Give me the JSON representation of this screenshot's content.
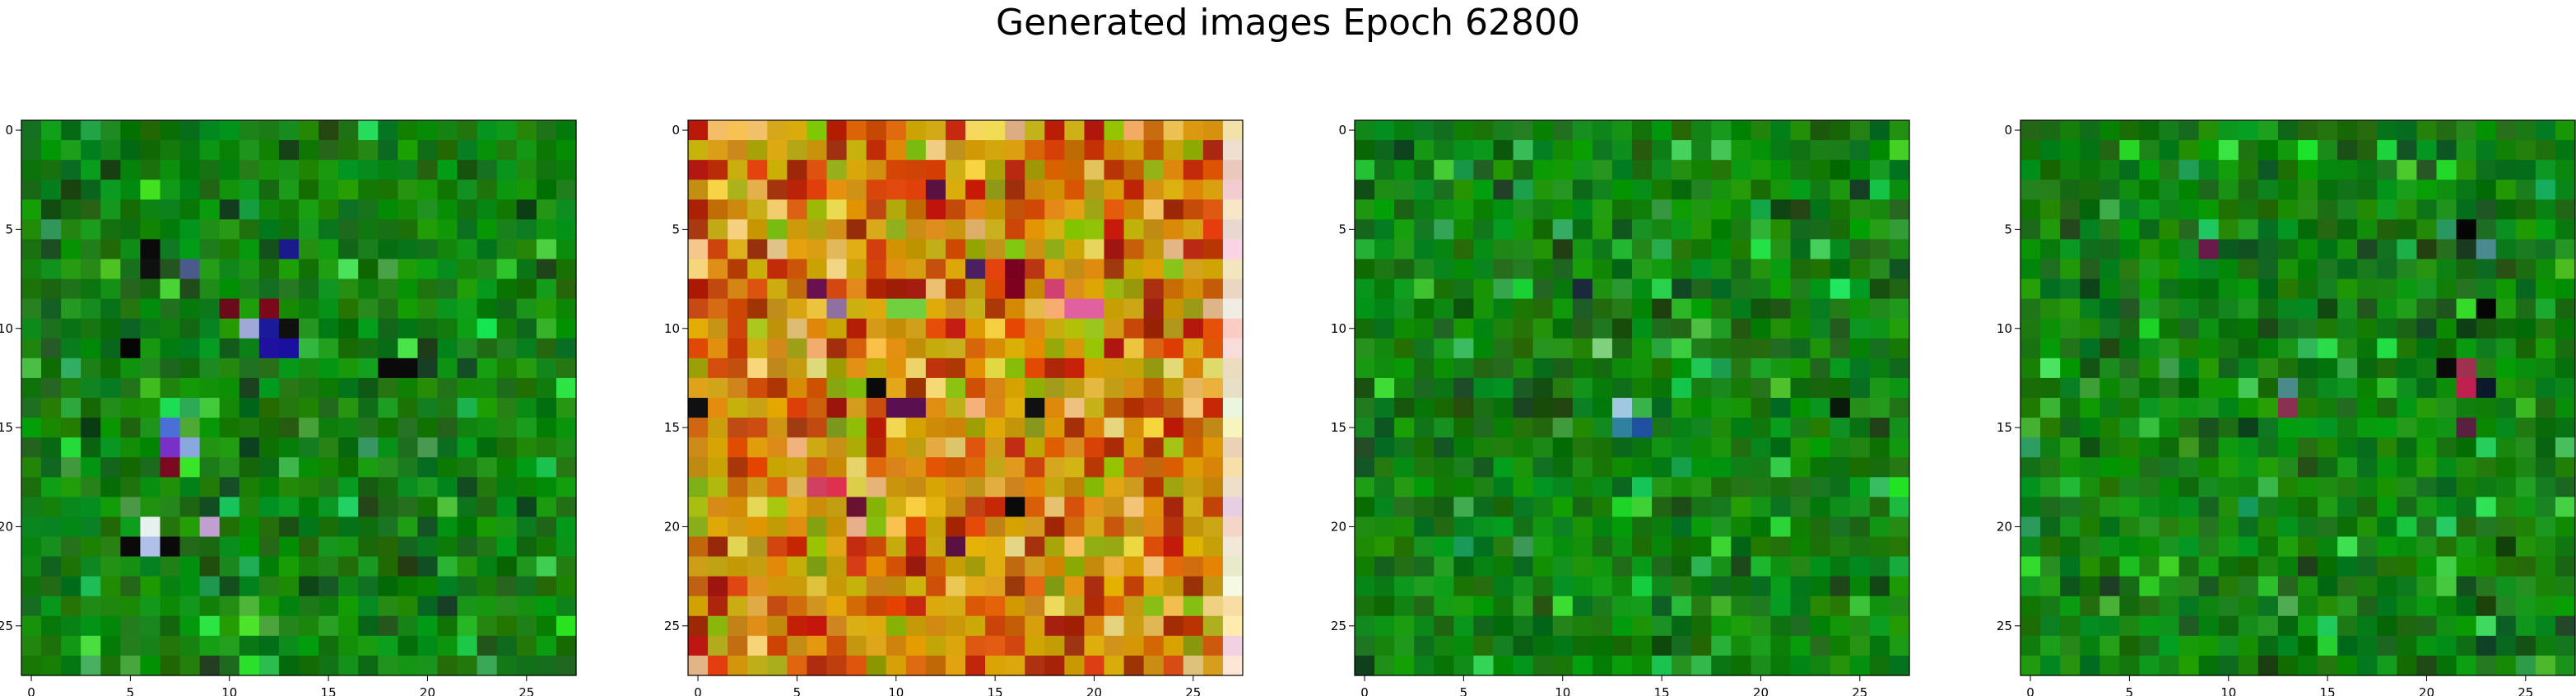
{
  "figure": {
    "title": "Generated images Epoch 62800"
  },
  "chart_data": [
    {
      "type": "heatmap",
      "palette": "green",
      "grid_size": 28,
      "xlim": [
        -0.5,
        27.5
      ],
      "ylim": [
        27.5,
        -0.5
      ],
      "xticks": [
        0,
        5,
        10,
        15,
        20,
        25
      ],
      "yticks": [
        0,
        5,
        10,
        15,
        20,
        25
      ],
      "xtick_labels": [
        "0",
        "5",
        "10",
        "15",
        "20",
        "25"
      ],
      "ytick_labels": [
        "0",
        "5",
        "10",
        "15",
        "20",
        "25"
      ],
      "highlights": [
        {
          "x": 13,
          "y": 6,
          "color": "#1a1a8c"
        },
        {
          "x": 12,
          "y": 10,
          "color": "#1a1a9a"
        },
        {
          "x": 13,
          "y": 11,
          "color": "#1a0f9e"
        },
        {
          "x": 12,
          "y": 11,
          "color": "#2010a0"
        },
        {
          "x": 8,
          "y": 7,
          "color": "#4a5a8a"
        },
        {
          "x": 10,
          "y": 9,
          "color": "#6a0a1a"
        },
        {
          "x": 12,
          "y": 9,
          "color": "#7a0a1a"
        },
        {
          "x": 11,
          "y": 10,
          "color": "#9fa8d8"
        },
        {
          "x": 7,
          "y": 15,
          "color": "#4a70d8"
        },
        {
          "x": 7,
          "y": 16,
          "color": "#7a30c8"
        },
        {
          "x": 8,
          "y": 16,
          "color": "#8aa8e0"
        },
        {
          "x": 7,
          "y": 17,
          "color": "#7a0a20"
        },
        {
          "x": 6,
          "y": 20,
          "color": "#e8f0f0"
        },
        {
          "x": 6,
          "y": 21,
          "color": "#b0c0e8"
        },
        {
          "x": 9,
          "y": 20,
          "color": "#c0a0d0"
        },
        {
          "x": 6,
          "y": 6,
          "color": "#0a0a0a"
        },
        {
          "x": 6,
          "y": 7,
          "color": "#101010"
        },
        {
          "x": 5,
          "y": 11,
          "color": "#050505"
        },
        {
          "x": 13,
          "y": 10,
          "color": "#101010"
        },
        {
          "x": 18,
          "y": 12,
          "color": "#0a0a0a"
        },
        {
          "x": 19,
          "y": 12,
          "color": "#0a0a0a"
        },
        {
          "x": 7,
          "y": 21,
          "color": "#0a0a0a"
        },
        {
          "x": 5,
          "y": 21,
          "color": "#0a0a0a"
        }
      ]
    },
    {
      "type": "heatmap",
      "palette": "warm",
      "grid_size": 28,
      "xlim": [
        -0.5,
        27.5
      ],
      "ylim": [
        27.5,
        -0.5
      ],
      "xticks": [
        0,
        5,
        10,
        15,
        20,
        25
      ],
      "yticks": [
        0,
        5,
        10,
        15,
        20,
        25
      ],
      "xtick_labels": [
        "0",
        "5",
        "10",
        "15",
        "20",
        "25"
      ],
      "ytick_labels": [
        "0",
        "5",
        "10",
        "15",
        "20",
        "25"
      ],
      "highlights": [
        {
          "x": 12,
          "y": 3,
          "color": "#5a1040"
        },
        {
          "x": 6,
          "y": 8,
          "color": "#6a1050"
        },
        {
          "x": 14,
          "y": 7,
          "color": "#4a2060"
        },
        {
          "x": 18,
          "y": 8,
          "color": "#d04070"
        },
        {
          "x": 19,
          "y": 9,
          "color": "#e060a0"
        },
        {
          "x": 20,
          "y": 9,
          "color": "#e060a0"
        },
        {
          "x": 16,
          "y": 8,
          "color": "#800020"
        },
        {
          "x": 16,
          "y": 7,
          "color": "#7a0020"
        },
        {
          "x": 7,
          "y": 9,
          "color": "#9070a0"
        },
        {
          "x": 10,
          "y": 9,
          "color": "#70d040"
        },
        {
          "x": 11,
          "y": 9,
          "color": "#70d040"
        },
        {
          "x": 9,
          "y": 13,
          "color": "#0a0a0a"
        },
        {
          "x": 10,
          "y": 14,
          "color": "#5a1050"
        },
        {
          "x": 11,
          "y": 14,
          "color": "#5a1050"
        },
        {
          "x": 17,
          "y": 14,
          "color": "#101010"
        },
        {
          "x": 0,
          "y": 14,
          "color": "#101010"
        },
        {
          "x": 7,
          "y": 18,
          "color": "#e03050"
        },
        {
          "x": 6,
          "y": 18,
          "color": "#d04060"
        },
        {
          "x": 16,
          "y": 19,
          "color": "#0a0a0a"
        },
        {
          "x": 13,
          "y": 21,
          "color": "#5a1040"
        },
        {
          "x": 8,
          "y": 19,
          "color": "#6a1030"
        }
      ]
    },
    {
      "type": "heatmap",
      "palette": "green",
      "grid_size": 28,
      "xlim": [
        -0.5,
        27.5
      ],
      "ylim": [
        27.5,
        -0.5
      ],
      "xticks": [
        0,
        5,
        10,
        15,
        20,
        25
      ],
      "yticks": [
        0,
        5,
        10,
        15,
        20,
        25
      ],
      "xtick_labels": [
        "0",
        "5",
        "10",
        "15",
        "20",
        "25"
      ],
      "ytick_labels": [
        "0",
        "5",
        "10",
        "15",
        "20",
        "25"
      ],
      "highlights": [
        {
          "x": 13,
          "y": 14,
          "color": "#a0c8e0"
        },
        {
          "x": 14,
          "y": 15,
          "color": "#2050a0"
        },
        {
          "x": 13,
          "y": 15,
          "color": "#3080a0"
        },
        {
          "x": 12,
          "y": 11,
          "color": "#80d080"
        },
        {
          "x": 11,
          "y": 8,
          "color": "#1a2a3a"
        },
        {
          "x": 24,
          "y": 14,
          "color": "#0a1a0a"
        }
      ]
    },
    {
      "type": "heatmap",
      "palette": "green",
      "grid_size": 28,
      "xlim": [
        -0.5,
        27.5
      ],
      "ylim": [
        27.5,
        -0.5
      ],
      "xticks": [
        0,
        5,
        10,
        15,
        20,
        25
      ],
      "yticks": [
        0,
        5,
        10,
        15,
        20,
        25
      ],
      "xtick_labels": [
        "0",
        "5",
        "10",
        "15",
        "20",
        "25"
      ],
      "ytick_labels": [
        "0",
        "5",
        "10",
        "15",
        "20",
        "25"
      ],
      "highlights": [
        {
          "x": 22,
          "y": 5,
          "color": "#050505"
        },
        {
          "x": 23,
          "y": 6,
          "color": "#4a8a90"
        },
        {
          "x": 22,
          "y": 6,
          "color": "#1a3a20"
        },
        {
          "x": 9,
          "y": 6,
          "color": "#6a1a4a"
        },
        {
          "x": 23,
          "y": 9,
          "color": "#050505"
        },
        {
          "x": 22,
          "y": 12,
          "color": "#a03050"
        },
        {
          "x": 22,
          "y": 13,
          "color": "#c02050"
        },
        {
          "x": 23,
          "y": 13,
          "color": "#0a1a2a"
        },
        {
          "x": 13,
          "y": 14,
          "color": "#8a3050"
        },
        {
          "x": 13,
          "y": 13,
          "color": "#4a8a8a"
        },
        {
          "x": 22,
          "y": 15,
          "color": "#5a2040"
        },
        {
          "x": 21,
          "y": 12,
          "color": "#0a0a0a"
        }
      ]
    }
  ]
}
